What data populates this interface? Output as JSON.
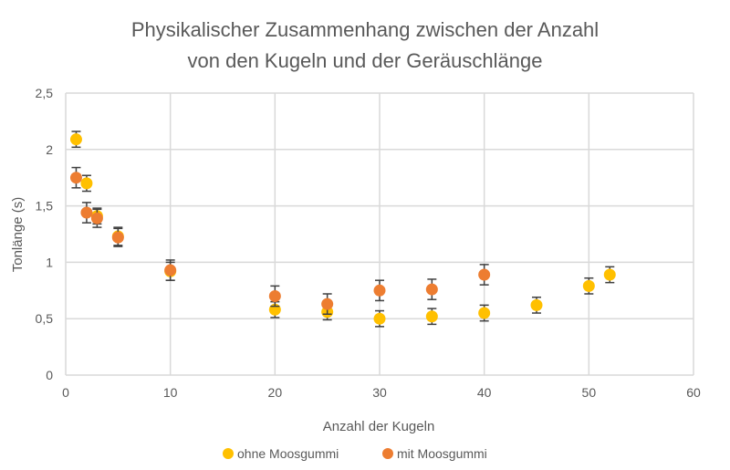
{
  "chart_data": {
    "type": "scatter",
    "title": [
      "Physikalischer Zusammenhang zwischen der Anzahl",
      "von den Kugeln und der Geräuschlänge"
    ],
    "xlabel": "Anzahl der Kugeln",
    "ylabel": "Tonlänge (s)",
    "xlim": [
      0,
      60
    ],
    "ylim": [
      0,
      2.5
    ],
    "x_ticks": [
      "0",
      "10",
      "20",
      "30",
      "40",
      "50",
      "60"
    ],
    "y_ticks": [
      "0",
      "0,5",
      "1",
      "1,5",
      "2",
      "2,5"
    ],
    "grid": true,
    "legend_position": "bottom",
    "series": [
      {
        "name": "ohne Moosgummi",
        "color": "#FFC000",
        "x": [
          1,
          2,
          3,
          5,
          10,
          20,
          25,
          30,
          35,
          40,
          45,
          50,
          52
        ],
        "y": [
          2.09,
          1.7,
          1.41,
          1.23,
          0.92,
          0.58,
          0.56,
          0.5,
          0.52,
          0.55,
          0.62,
          0.79,
          0.89
        ],
        "error": [
          0.07,
          0.07,
          0.07,
          0.08,
          0.08,
          0.07,
          0.07,
          0.07,
          0.07,
          0.07,
          0.07,
          0.07,
          0.07
        ]
      },
      {
        "name": "mit Moosgummi",
        "color": "#ED7D31",
        "x": [
          1,
          2,
          3,
          5,
          10,
          20,
          25,
          30,
          35,
          40
        ],
        "y": [
          1.75,
          1.44,
          1.39,
          1.22,
          0.93,
          0.7,
          0.63,
          0.75,
          0.76,
          0.89
        ],
        "error": [
          0.09,
          0.09,
          0.08,
          0.08,
          0.09,
          0.09,
          0.09,
          0.09,
          0.09,
          0.09
        ]
      }
    ]
  }
}
